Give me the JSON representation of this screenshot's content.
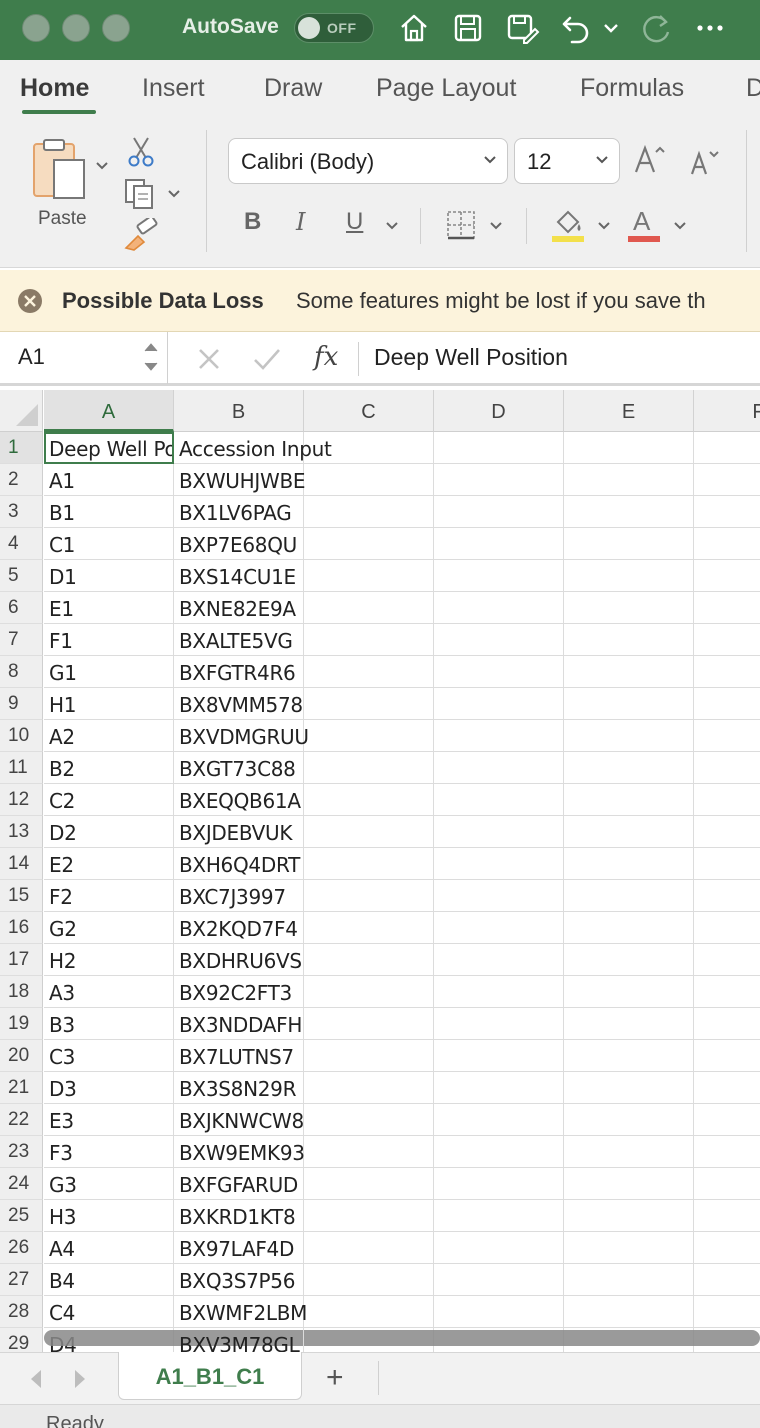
{
  "titlebar": {
    "autosave_label": "AutoSave",
    "autosave_state": "OFF"
  },
  "ribbon_tabs": [
    "Home",
    "Insert",
    "Draw",
    "Page Layout",
    "Formulas",
    "D"
  ],
  "ribbon": {
    "paste_label": "Paste",
    "font_name": "Calibri (Body)",
    "font_size": "12",
    "bold_label": "B",
    "italic_label": "I",
    "underline_label": "U",
    "font_color_label": "A"
  },
  "colors": {
    "brand": "#3f7d4c",
    "fill_swatch": "#f3e04b",
    "font_swatch": "#e0584f"
  },
  "message_bar": {
    "title": "Possible Data Loss",
    "text": "Some features might be lost if you save th"
  },
  "formula_bar": {
    "cell_ref": "A1",
    "formula": "Deep Well Position",
    "fx_label": "fx"
  },
  "grid": {
    "columns": [
      "A",
      "B",
      "C",
      "D",
      "E",
      "F"
    ],
    "rows": [
      {
        "n": "1",
        "a": "Deep Well Position",
        "b": "Accession Input"
      },
      {
        "n": "2",
        "a": "A1",
        "b": "BXWUHJWBE"
      },
      {
        "n": "3",
        "a": "B1",
        "b": "BX1LV6PAG"
      },
      {
        "n": "4",
        "a": "C1",
        "b": "BXP7E68QU"
      },
      {
        "n": "5",
        "a": "D1",
        "b": "BXS14CU1E"
      },
      {
        "n": "6",
        "a": "E1",
        "b": "BXNE82E9A"
      },
      {
        "n": "7",
        "a": "F1",
        "b": "BXALTE5VG"
      },
      {
        "n": "8",
        "a": "G1",
        "b": "BXFGTR4R6"
      },
      {
        "n": "9",
        "a": "H1",
        "b": "BX8VMM578"
      },
      {
        "n": "10",
        "a": "A2",
        "b": "BXVDMGRUU"
      },
      {
        "n": "11",
        "a": "B2",
        "b": "BXGT73C88"
      },
      {
        "n": "12",
        "a": "C2",
        "b": "BXEQQB61A"
      },
      {
        "n": "13",
        "a": "D2",
        "b": "BXJDEBVUK"
      },
      {
        "n": "14",
        "a": "E2",
        "b": "BXH6Q4DRT"
      },
      {
        "n": "15",
        "a": "F2",
        "b": "BXC7J3997"
      },
      {
        "n": "16",
        "a": "G2",
        "b": "BX2KQD7F4"
      },
      {
        "n": "17",
        "a": "H2",
        "b": "BXDHRU6VS"
      },
      {
        "n": "18",
        "a": "A3",
        "b": "BX92C2FT3"
      },
      {
        "n": "19",
        "a": "B3",
        "b": "BX3NDDAFH"
      },
      {
        "n": "20",
        "a": "C3",
        "b": "BX7LUTNS7"
      },
      {
        "n": "21",
        "a": "D3",
        "b": "BX3S8N29R"
      },
      {
        "n": "22",
        "a": "E3",
        "b": "BXJKNWCW8"
      },
      {
        "n": "23",
        "a": "F3",
        "b": "BXW9EMK93"
      },
      {
        "n": "24",
        "a": "G3",
        "b": "BXFGFARUD"
      },
      {
        "n": "25",
        "a": "H3",
        "b": "BXKRD1KT8"
      },
      {
        "n": "26",
        "a": "A4",
        "b": "BX97LAF4D"
      },
      {
        "n": "27",
        "a": "B4",
        "b": "BXQ3S7P56"
      },
      {
        "n": "28",
        "a": "C4",
        "b": "BXWMF2LBM"
      },
      {
        "n": "29",
        "a": "D4",
        "b": "BXV3M78GL"
      }
    ]
  },
  "sheets": {
    "active": "A1_B1_C1",
    "add_label": "+"
  },
  "status": {
    "text": "Ready"
  }
}
